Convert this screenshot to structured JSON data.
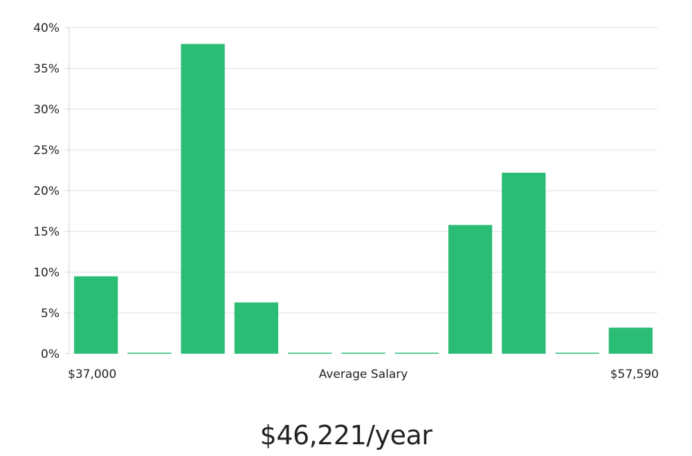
{
  "chart_data": {
    "type": "bar",
    "title": "",
    "xlabel": "Average Salary",
    "ylabel": "",
    "x_min_label": "$37,000",
    "x_max_label": "$57,590",
    "y_ticks": [
      "0%",
      "5%",
      "10%",
      "15%",
      "20%",
      "25%",
      "30%",
      "35%",
      "40%"
    ],
    "ylim": [
      0,
      40
    ],
    "values": [
      9.5,
      0,
      38,
      6.3,
      0,
      0,
      0,
      15.8,
      22.2,
      0,
      3.2
    ],
    "bar_color": "#2bbd75",
    "zero_bar_color": "#2bbd75",
    "grid": true
  },
  "salary_headline": "$46,221/year"
}
